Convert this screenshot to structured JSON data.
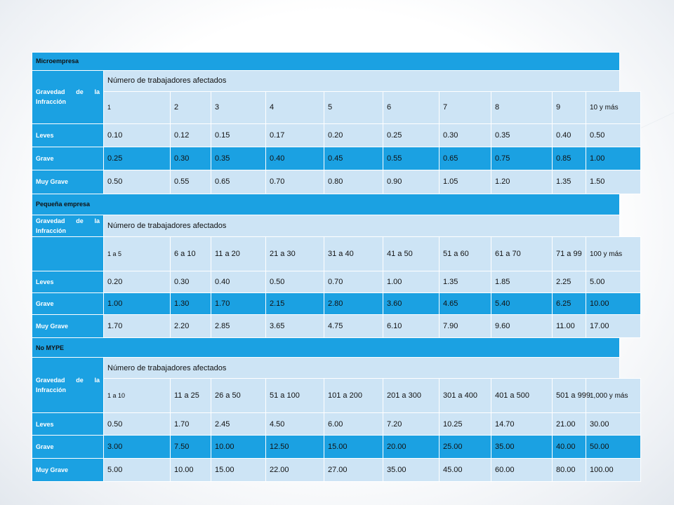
{
  "sections": [
    {
      "title": "Microempresa",
      "gravedad_label": "Gravedad de la Infracción",
      "afectados_label": "Número de trabajadores afectados",
      "ranges": [
        "1",
        "2",
        "3",
        "4",
        "5",
        "6",
        "7",
        "8",
        "9",
        "10 y más"
      ],
      "rows": [
        {
          "label": "Leves",
          "values": [
            "0.10",
            "0.12",
            "0.15",
            "0.17",
            "0.20",
            "0.25",
            "0.30",
            "0.35",
            "0.40",
            "0.50"
          ]
        },
        {
          "label": "Grave",
          "values": [
            "0.25",
            "0.30",
            "0.35",
            "0.40",
            "0.45",
            "0.55",
            "0.65",
            "0.75",
            "0.85",
            "1.00"
          ]
        },
        {
          "label": "Muy Grave",
          "values": [
            "0.50",
            "0.55",
            "0.65",
            "0.70",
            "0.80",
            "0.90",
            "1.05",
            "1.20",
            "1.35",
            "1.50"
          ]
        }
      ]
    },
    {
      "title": "Pequeña empresa",
      "gravedad_label": "Gravedad de la Infracción",
      "afectados_label": "Número de trabajadores afectados",
      "ranges": [
        "1 a 5",
        "6 a 10",
        "11 a 20",
        "21 a 30",
        "31 a 40",
        "41 a 50",
        "51 a 60",
        "61 a 70",
        "71 a 99",
        "100 y más"
      ],
      "rows": [
        {
          "label": "Leves",
          "values": [
            "0.20",
            "0.30",
            "0.40",
            "0.50",
            "0.70",
            "1.00",
            "1.35",
            "1.85",
            "2.25",
            "5.00"
          ]
        },
        {
          "label": "Grave",
          "values": [
            "1.00",
            "1.30",
            "1.70",
            "2.15",
            "2.80",
            "3.60",
            "4.65",
            "5.40",
            "6.25",
            "10.00"
          ]
        },
        {
          "label": "Muy Grave",
          "values": [
            "1.70",
            "2.20",
            "2.85",
            "3.65",
            "4.75",
            "6.10",
            "7.90",
            "9.60",
            "11.00",
            "17.00"
          ]
        }
      ]
    },
    {
      "title": "No MYPE",
      "gravedad_label": "Gravedad de la Infracción",
      "afectados_label": "Número de trabajadores afectados",
      "ranges": [
        "1 a 10",
        "11 a 25",
        "26 a 50",
        "51 a 100",
        "101 a 200",
        "201 a 300",
        "301 a 400",
        "401 a 500",
        "501 a 999",
        "1,000 y más"
      ],
      "rows": [
        {
          "label": "Leves",
          "values": [
            "0.50",
            "1.70",
            "2.45",
            "4.50",
            "6.00",
            "7.20",
            "10.25",
            "14.70",
            "21.00",
            "30.00"
          ]
        },
        {
          "label": "Grave",
          "values": [
            "3.00",
            "7.50",
            "10.00",
            "12.50",
            "15.00",
            "20.00",
            "25.00",
            "35.00",
            "40.00",
            "50.00"
          ]
        },
        {
          "label": "Muy Grave",
          "values": [
            "5.00",
            "10.00",
            "15.00",
            "22.00",
            "27.00",
            "35.00",
            "45.00",
            "60.00",
            "80.00",
            "100.00"
          ]
        }
      ]
    }
  ],
  "colors": {
    "accent": "#1ba1e2",
    "light": "#cde4f5"
  }
}
